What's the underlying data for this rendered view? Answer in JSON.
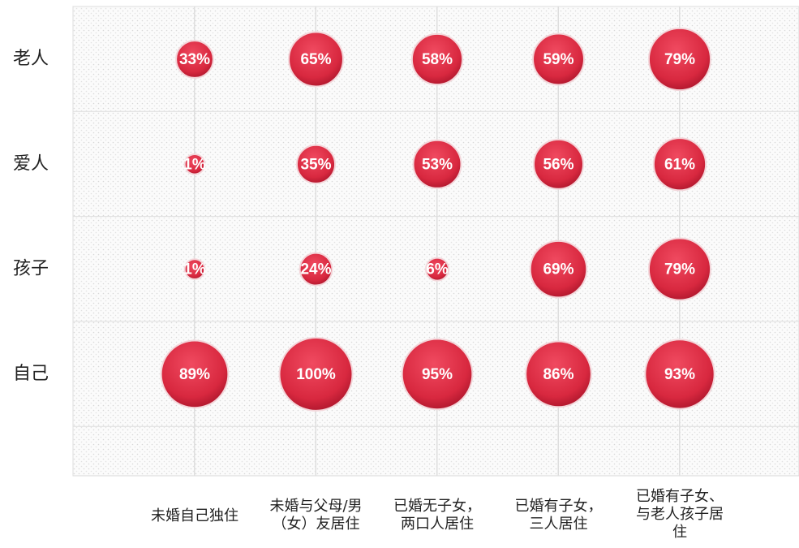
{
  "chart_data": {
    "type": "bubble",
    "x_categories": [
      [
        "未婚自己独住"
      ],
      [
        "未婚与父母/男",
        "（女）友居住"
      ],
      [
        "已婚无子女，",
        "两口人居住"
      ],
      [
        "已婚有子女，",
        "三人居住"
      ],
      [
        "已婚有子女、",
        "与老人孩子居",
        "住"
      ]
    ],
    "rows": [
      {
        "label": "老人",
        "values": [
          33,
          65,
          58,
          59,
          79
        ],
        "value_labels": [
          "33%",
          "65%",
          "58%",
          "59%",
          "79%"
        ]
      },
      {
        "label": "爱人",
        "values": [
          1,
          35,
          53,
          56,
          61
        ],
        "value_labels": [
          "1%",
          "35%",
          "53%",
          "56%",
          "61%"
        ]
      },
      {
        "label": "孩子",
        "values": [
          1,
          24,
          6,
          69,
          79
        ],
        "value_labels": [
          "1%",
          "24%",
          "6%",
          "69%",
          "79%"
        ]
      },
      {
        "label": "自己",
        "values": [
          89,
          100,
          95,
          86,
          93
        ],
        "value_labels": [
          "89%",
          "100%",
          "95%",
          "86%",
          "93%"
        ]
      }
    ],
    "color": "#d8283f"
  }
}
